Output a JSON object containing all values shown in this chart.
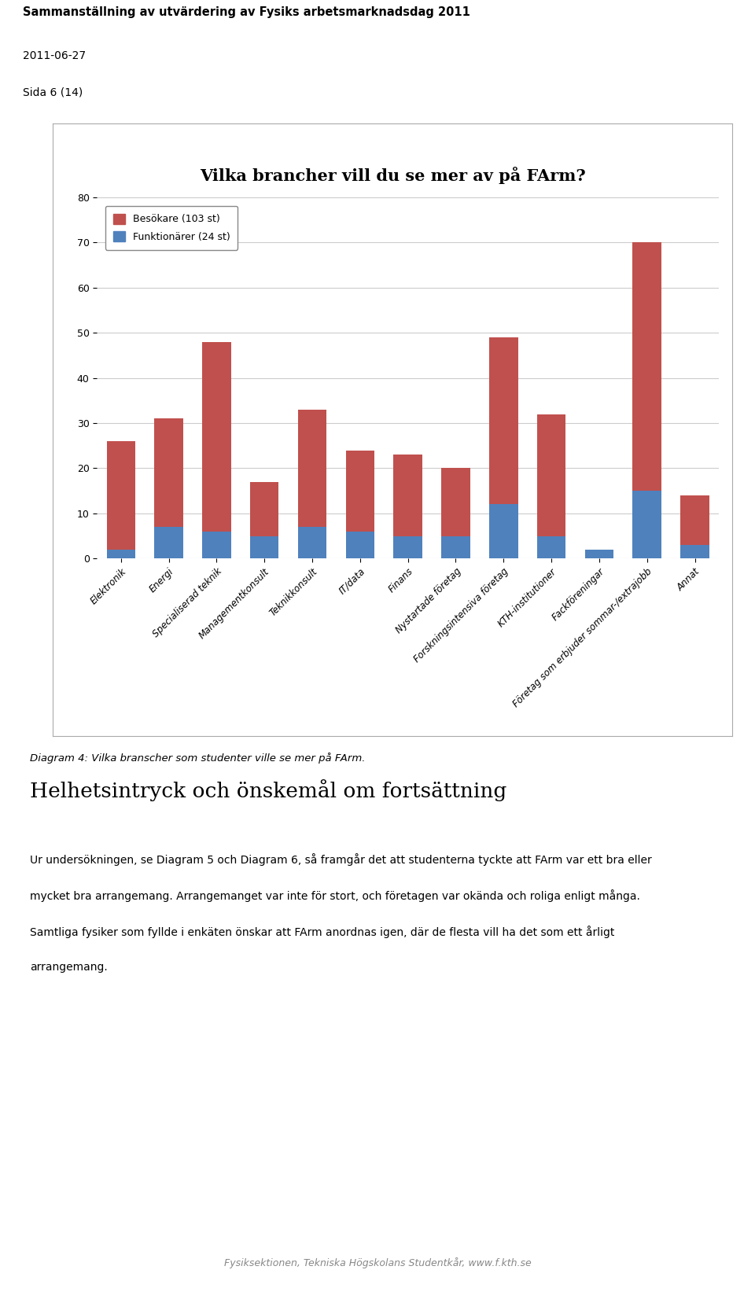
{
  "title": "Vilka brancher vill du se mer av på FArm?",
  "header_line1": "Sammanställning av utvärdering av Fysiks arbetsmarknadsdag 2011",
  "header_line2": "2011-06-27",
  "header_line3": "Sida 6 (14)",
  "categories": [
    "Elektronik",
    "Energi",
    "Specialiserad teknik",
    "Managementkonsult",
    "Teknikkonsult",
    "IT/data",
    "Finans",
    "Nystartade företag",
    "Forskningsintensiva företag",
    "KTH-institutioner",
    "Fackföreningar",
    "Företag som erbjuder sommar-/extrajobb",
    "Annat"
  ],
  "besokare": [
    26,
    31,
    48,
    17,
    33,
    24,
    23,
    20,
    49,
    32,
    2,
    70,
    14
  ],
  "funktionarer": [
    2,
    7,
    6,
    5,
    7,
    6,
    5,
    5,
    12,
    5,
    2,
    15,
    3
  ],
  "besokare_color": "#C0504D",
  "funktionarer_color": "#4F81BD",
  "legend_besokare": "Besökare (103 st)",
  "legend_funktionarer": "Funktionärer (24 st)",
  "ylim": [
    0,
    80
  ],
  "yticks": [
    0,
    10,
    20,
    30,
    40,
    50,
    60,
    70,
    80
  ],
  "diagram_caption": "Diagram 4: Vilka branscher som studenter ville se mer på FArm.",
  "section_title": "Helhetsintryck och önskemål om fortsättning",
  "section_text": "Ur undersökningen, se Diagram 5 och Diagram 6, så framgår det att studenterna tyckte att FArm var ett bra eller\nmycket bra arrangemang. Arrangemanget var inte för stort, och företagen var okända och roliga enligt många.\nSamtliga fysiker som fyllde i enkäten önskar att FArm anordnas igen, där de flesta vill ha det som ett årligt\narrangemang.",
  "footer": "Fysiksektionen, Tekniska Högskolans Studentkår, www.f.kth.se",
  "bg_color": "#FFFFFF"
}
